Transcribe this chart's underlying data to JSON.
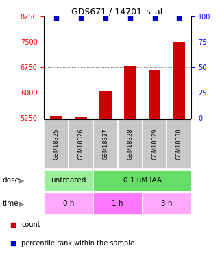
{
  "title": "GDS671 / 14701_s_at",
  "samples": [
    "GSM18325",
    "GSM18326",
    "GSM18327",
    "GSM18328",
    "GSM18329",
    "GSM18330"
  ],
  "bar_values": [
    5330,
    5310,
    6050,
    6800,
    6680,
    7500
  ],
  "percentile_values": [
    99,
    99,
    99,
    99,
    99,
    99
  ],
  "bar_color": "#cc0000",
  "dot_color": "#0000cc",
  "ylim_left": [
    5250,
    8250
  ],
  "ylim_right": [
    0,
    100
  ],
  "yticks_left": [
    5250,
    6000,
    6750,
    7500,
    8250
  ],
  "yticks_right": [
    0,
    25,
    50,
    75,
    100
  ],
  "dose_groups": [
    {
      "text": "untreated",
      "start": 0,
      "end": 2,
      "color": "#99EE99"
    },
    {
      "text": "0.1 uM IAA",
      "start": 2,
      "end": 6,
      "color": "#66DD66"
    }
  ],
  "time_groups": [
    {
      "text": "0 h",
      "start": 0,
      "end": 2,
      "color": "#FFAAFF"
    },
    {
      "text": "1 h",
      "start": 2,
      "end": 4,
      "color": "#FF77FF"
    },
    {
      "text": "3 h",
      "start": 4,
      "end": 6,
      "color": "#FFAAFF"
    }
  ],
  "sample_box_color": "#C8C8C8",
  "legend_count_color": "#cc0000",
  "legend_dot_color": "#0000cc",
  "gridline_ticks": [
    6000,
    6750,
    7500
  ]
}
